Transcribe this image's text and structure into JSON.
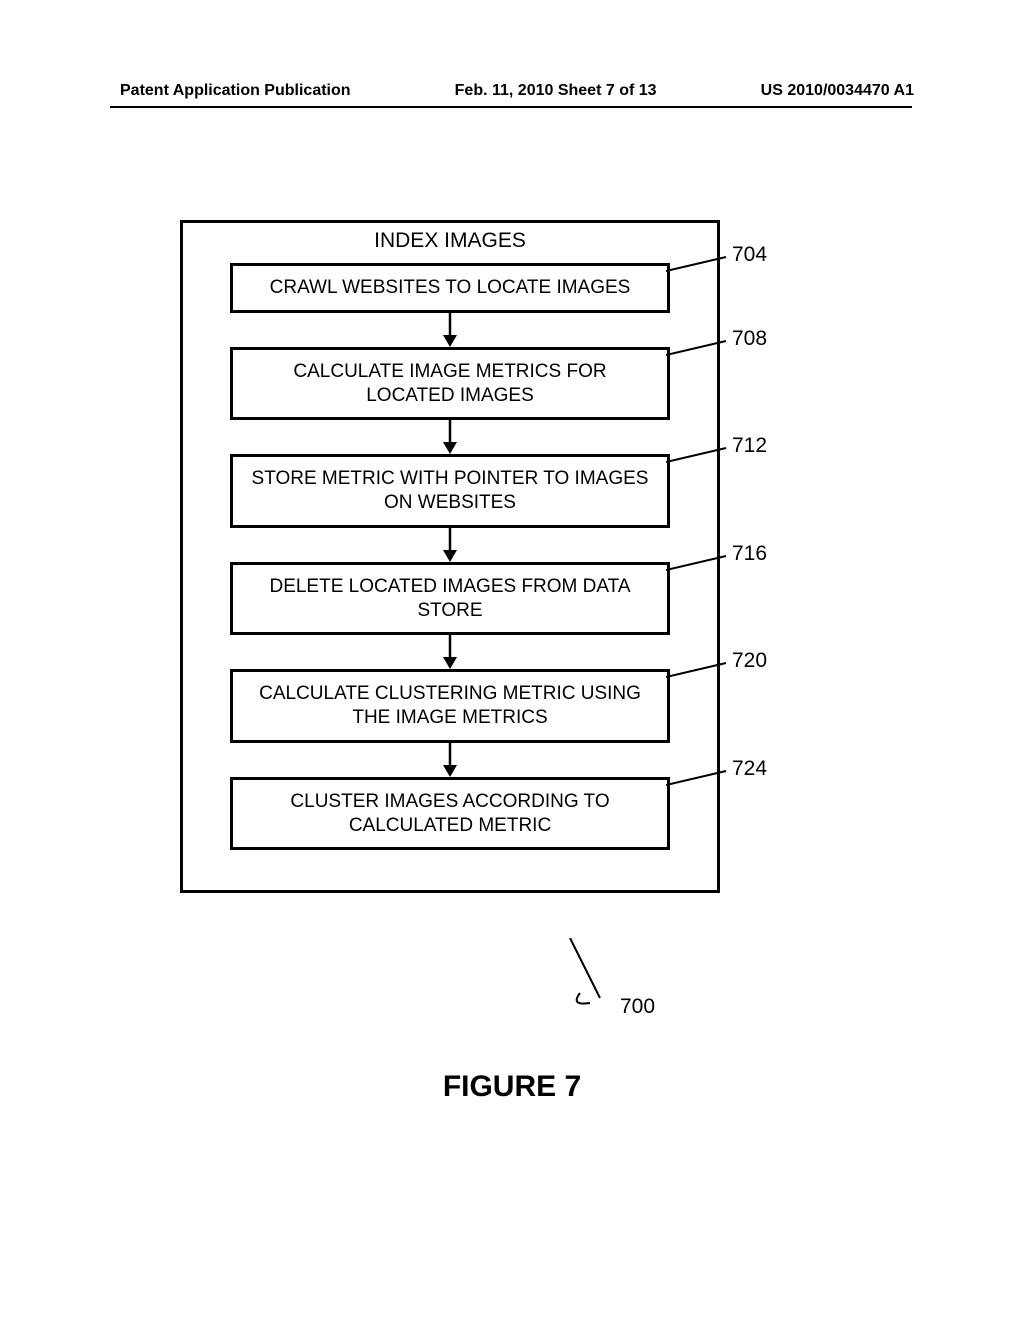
{
  "header": {
    "left": "Patent Application Publication",
    "center": "Feb. 11, 2010  Sheet 7 of 13",
    "right": "US 2010/0034470 A1"
  },
  "flowchart": {
    "type": "flowchart",
    "outer_label": "INDEX IMAGES",
    "outer_ref": "700",
    "box_border_color": "#000000",
    "box_border_width": 3,
    "background_color": "#ffffff",
    "text_color": "#000000",
    "title_fontsize": 21,
    "step_fontsize": 19,
    "ref_fontsize": 21,
    "arrow_gap": 34,
    "steps": [
      {
        "ref": "704",
        "text": "CRAWL WEBSITES TO LOCATE IMAGES"
      },
      {
        "ref": "708",
        "text": "CALCULATE IMAGE METRICS FOR LOCATED IMAGES"
      },
      {
        "ref": "712",
        "text": "STORE METRIC WITH POINTER TO IMAGES ON WEBSITES"
      },
      {
        "ref": "716",
        "text": "DELETE LOCATED IMAGES FROM DATA STORE"
      },
      {
        "ref": "720",
        "text": "CALCULATE CLUSTERING METRIC USING THE IMAGE METRICS"
      },
      {
        "ref": "724",
        "text": "CLUSTER IMAGES ACCORDING TO CALCULATED METRIC"
      }
    ]
  },
  "caption": "FIGURE 7"
}
